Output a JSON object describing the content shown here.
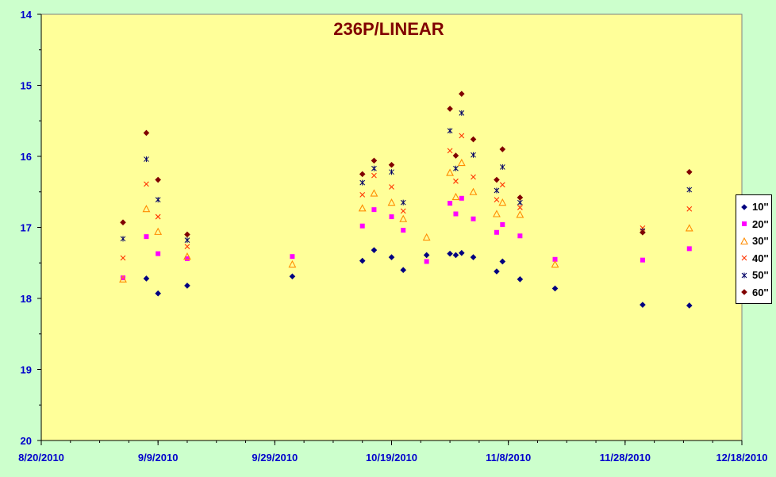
{
  "chart_data": {
    "type": "scatter",
    "title": "236P/LINEAR",
    "xlabel": "",
    "ylabel": "",
    "x_tick_labels": [
      "8/20/2010",
      "9/9/2010",
      "9/29/2010",
      "10/19/2010",
      "11/8/2010",
      "11/28/2010",
      "12/18/2010"
    ],
    "x_ticks": [
      "2010-08-20",
      "2010-09-09",
      "2010-09-29",
      "2010-10-19",
      "2010-11-08",
      "2010-11-28",
      "2010-12-18"
    ],
    "xlim": [
      "2010-08-20",
      "2010-12-18"
    ],
    "y_tick_labels": [
      "14",
      "15",
      "16",
      "17",
      "18",
      "19",
      "20"
    ],
    "ylim": [
      14,
      20
    ],
    "y_inverted": true,
    "plot_background": "#ffff99",
    "page_background": "#ccffcc",
    "grid": false,
    "legend_position": "right",
    "series": [
      {
        "name": "10''",
        "marker": "diamond",
        "color": "#000080",
        "points": [
          [
            "2010-09-07",
            17.72
          ],
          [
            "2010-09-09",
            17.93
          ],
          [
            "2010-09-14",
            17.82
          ],
          [
            "2010-10-02",
            17.69
          ],
          [
            "2010-10-14",
            17.47
          ],
          [
            "2010-10-16",
            17.32
          ],
          [
            "2010-10-19",
            17.42
          ],
          [
            "2010-10-21",
            17.6
          ],
          [
            "2010-10-25",
            17.39
          ],
          [
            "2010-10-29",
            17.37
          ],
          [
            "2010-10-30",
            17.39
          ],
          [
            "2010-10-31",
            17.36
          ],
          [
            "2010-11-02",
            17.42
          ],
          [
            "2010-11-06",
            17.62
          ],
          [
            "2010-11-07",
            17.48
          ],
          [
            "2010-11-10",
            17.73
          ],
          [
            "2010-11-16",
            17.86
          ],
          [
            "2010-12-01",
            18.09
          ],
          [
            "2010-12-09",
            18.1
          ]
        ]
      },
      {
        "name": "20''",
        "marker": "square",
        "color": "#ff00ff",
        "points": [
          [
            "2010-09-03",
            17.71
          ],
          [
            "2010-09-07",
            17.13
          ],
          [
            "2010-09-09",
            17.37
          ],
          [
            "2010-09-14",
            17.44
          ],
          [
            "2010-10-02",
            17.41
          ],
          [
            "2010-10-14",
            16.98
          ],
          [
            "2010-10-16",
            16.75
          ],
          [
            "2010-10-19",
            16.85
          ],
          [
            "2010-10-21",
            17.04
          ],
          [
            "2010-10-25",
            17.48
          ],
          [
            "2010-10-29",
            16.66
          ],
          [
            "2010-10-30",
            16.81
          ],
          [
            "2010-10-31",
            16.59
          ],
          [
            "2010-11-02",
            16.88
          ],
          [
            "2010-11-06",
            17.07
          ],
          [
            "2010-11-07",
            16.96
          ],
          [
            "2010-11-10",
            17.12
          ],
          [
            "2010-11-16",
            17.45
          ],
          [
            "2010-12-01",
            17.46
          ],
          [
            "2010-12-09",
            17.3
          ]
        ]
      },
      {
        "name": "30''",
        "marker": "triangle",
        "color": "#ff8c00",
        "points": [
          [
            "2010-09-03",
            17.73
          ],
          [
            "2010-09-07",
            16.74
          ],
          [
            "2010-09-09",
            17.06
          ],
          [
            "2010-09-14",
            17.41
          ],
          [
            "2010-10-02",
            17.52
          ],
          [
            "2010-10-14",
            16.73
          ],
          [
            "2010-10-16",
            16.52
          ],
          [
            "2010-10-19",
            16.65
          ],
          [
            "2010-10-21",
            16.88
          ],
          [
            "2010-10-25",
            17.14
          ],
          [
            "2010-10-29",
            16.23
          ],
          [
            "2010-10-30",
            16.57
          ],
          [
            "2010-10-31",
            16.09
          ],
          [
            "2010-11-02",
            16.5
          ],
          [
            "2010-11-06",
            16.81
          ],
          [
            "2010-11-07",
            16.65
          ],
          [
            "2010-11-10",
            16.82
          ],
          [
            "2010-11-16",
            17.52
          ],
          [
            "2010-12-09",
            17.01
          ]
        ]
      },
      {
        "name": "40''",
        "marker": "x",
        "color": "#ff3300",
        "points": [
          [
            "2010-09-03",
            17.43
          ],
          [
            "2010-09-07",
            16.39
          ],
          [
            "2010-09-09",
            16.85
          ],
          [
            "2010-09-14",
            17.27
          ],
          [
            "2010-10-14",
            16.54
          ],
          [
            "2010-10-16",
            16.27
          ],
          [
            "2010-10-19",
            16.43
          ],
          [
            "2010-10-21",
            16.77
          ],
          [
            "2010-10-29",
            15.92
          ],
          [
            "2010-10-30",
            16.35
          ],
          [
            "2010-10-31",
            15.71
          ],
          [
            "2010-11-02",
            16.29
          ],
          [
            "2010-11-06",
            16.61
          ],
          [
            "2010-11-07",
            16.4
          ],
          [
            "2010-11-10",
            16.72
          ],
          [
            "2010-12-01",
            17.01
          ],
          [
            "2010-12-09",
            16.74
          ]
        ]
      },
      {
        "name": "50''",
        "marker": "star",
        "color": "#000066",
        "points": [
          [
            "2010-09-03",
            17.16
          ],
          [
            "2010-09-07",
            16.04
          ],
          [
            "2010-09-09",
            16.61
          ],
          [
            "2010-09-14",
            17.18
          ],
          [
            "2010-10-14",
            16.37
          ],
          [
            "2010-10-16",
            16.17
          ],
          [
            "2010-10-19",
            16.22
          ],
          [
            "2010-10-21",
            16.65
          ],
          [
            "2010-10-29",
            15.64
          ],
          [
            "2010-10-30",
            16.17
          ],
          [
            "2010-10-31",
            15.39
          ],
          [
            "2010-11-02",
            15.98
          ],
          [
            "2010-11-06",
            16.48
          ],
          [
            "2010-11-07",
            16.15
          ],
          [
            "2010-11-10",
            16.65
          ],
          [
            "2010-12-01",
            17.05
          ],
          [
            "2010-12-09",
            16.47
          ]
        ]
      },
      {
        "name": "60''",
        "marker": "diamond",
        "color": "#800000",
        "points": [
          [
            "2010-09-03",
            16.93
          ],
          [
            "2010-09-07",
            15.67
          ],
          [
            "2010-09-09",
            16.33
          ],
          [
            "2010-09-14",
            17.1
          ],
          [
            "2010-10-14",
            16.25
          ],
          [
            "2010-10-16",
            16.06
          ],
          [
            "2010-10-19",
            16.12
          ],
          [
            "2010-10-29",
            15.33
          ],
          [
            "2010-10-30",
            15.99
          ],
          [
            "2010-10-31",
            15.12
          ],
          [
            "2010-11-02",
            15.76
          ],
          [
            "2010-11-06",
            16.33
          ],
          [
            "2010-11-07",
            15.9
          ],
          [
            "2010-11-10",
            16.58
          ],
          [
            "2010-12-01",
            17.07
          ],
          [
            "2010-12-09",
            16.22
          ]
        ]
      }
    ]
  }
}
